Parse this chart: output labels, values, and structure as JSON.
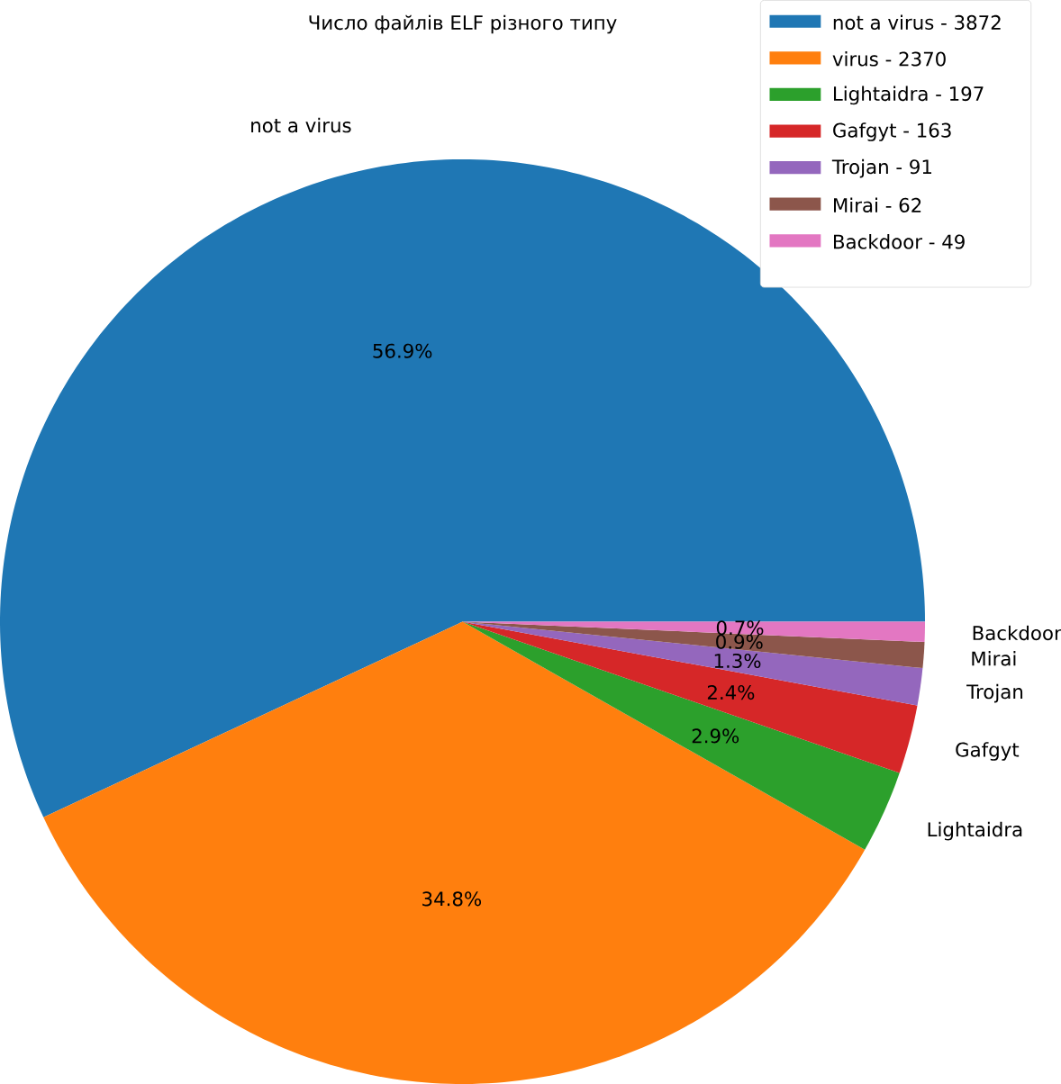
{
  "chart_data": {
    "type": "pie",
    "title": "Число файлів ELF різного типу",
    "categories": [
      "not a virus",
      "virus",
      "Lightaidra",
      "Gafgyt",
      "Trojan",
      "Mirai",
      "Backdoor"
    ],
    "values": [
      56.9,
      34.8,
      2.9,
      2.4,
      1.3,
      0.9,
      0.7
    ],
    "colors": [
      "#1f77b4",
      "#ff7f0e",
      "#2ca02c",
      "#d62728",
      "#9467bd",
      "#8c564b",
      "#e377c2"
    ],
    "value_labels": [
      "56.9%",
      "34.8%",
      "2.9%",
      "2.4%",
      "1.3%",
      "0.9%",
      "0.7%"
    ],
    "annotations": [
      "- 3872",
      "- 2370",
      "- 197",
      "- 163",
      "- 91",
      "- 62",
      "- 49"
    ],
    "legend": "top right"
  }
}
